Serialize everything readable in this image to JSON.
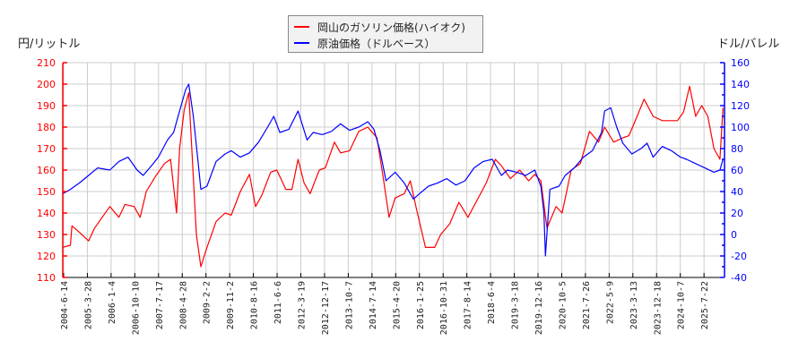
{
  "chart_data": {
    "type": "line",
    "title": "",
    "ylabel_left": "円/リットル",
    "ylabel_right": "ドル/バレル",
    "xlabel": "",
    "ylim_left": [
      110,
      210
    ],
    "ylim_right": [
      -40,
      160
    ],
    "yticks_left": [
      110,
      120,
      130,
      140,
      150,
      160,
      170,
      180,
      190,
      200,
      210
    ],
    "yticks_right": [
      -40,
      -20,
      0,
      20,
      40,
      60,
      80,
      100,
      120,
      140,
      160
    ],
    "xticks": [
      "2004-6-14",
      "2005-3-28",
      "2006-1-4",
      "2006-10-10",
      "2007-7-17",
      "2008-4-28",
      "2009-2-2",
      "2009-11-2",
      "2010-8-16",
      "2011-6-6",
      "2012-3-19",
      "2012-12-17",
      "2013-10-7",
      "2014-7-14",
      "2015-4-20",
      "2016-1-25",
      "2016-10-31",
      "2017-8-14",
      "2018-6-4",
      "2019-3-18",
      "2019-12-16",
      "2020-10-5",
      "2021-7-26",
      "2022-5-9",
      "2023-3-13",
      "2023-12-18",
      "2024-10-7",
      "2025-7-22"
    ],
    "grid": true,
    "legend_position": "top-center",
    "series": [
      {
        "name": "岡山のガソリン価格(ハイオク)",
        "axis": "left",
        "color": "#ff0000",
        "x": [
          2004.45,
          2004.7,
          2004.75,
          2005.0,
          2005.3,
          2005.5,
          2005.7,
          2006.0,
          2006.3,
          2006.5,
          2006.8,
          2007.0,
          2007.2,
          2007.5,
          2007.8,
          2008.0,
          2008.2,
          2008.3,
          2008.45,
          2008.6,
          2008.7,
          2008.85,
          2009.0,
          2009.2,
          2009.5,
          2009.8,
          2010.0,
          2010.3,
          2010.6,
          2010.8,
          2011.0,
          2011.3,
          2011.5,
          2011.8,
          2012.0,
          2012.2,
          2012.4,
          2012.6,
          2012.9,
          2013.1,
          2013.4,
          2013.6,
          2013.9,
          2014.2,
          2014.5,
          2014.8,
          2015.0,
          2015.2,
          2015.4,
          2015.7,
          2015.9,
          2016.1,
          2016.4,
          2016.7,
          2016.9,
          2017.2,
          2017.5,
          2017.8,
          2018.1,
          2018.4,
          2018.7,
          2018.9,
          2019.2,
          2019.5,
          2019.8,
          2020.0,
          2020.2,
          2020.4,
          2020.7,
          2020.9,
          2021.2,
          2021.5,
          2021.8,
          2022.1,
          2022.3,
          2022.6,
          2022.9,
          2023.1,
          2023.4,
          2023.6,
          2023.9,
          2024.2,
          2024.5,
          2024.7,
          2024.9,
          2025.1,
          2025.3,
          2025.5,
          2025.7,
          2025.9,
          2026.1,
          2026.2
        ],
        "values": [
          124,
          125,
          134,
          131,
          127,
          133,
          137,
          143,
          138,
          144,
          143,
          138,
          150,
          157,
          163,
          165,
          140,
          170,
          188,
          196,
          170,
          130,
          115,
          124,
          136,
          140,
          139,
          150,
          158,
          143,
          148,
          159,
          160,
          151,
          151,
          165,
          154,
          149,
          160,
          161,
          173,
          168,
          169,
          178,
          180,
          175,
          157,
          138,
          147,
          149,
          155,
          142,
          124,
          124,
          130,
          135,
          145,
          138,
          146,
          154,
          165,
          162,
          156,
          160,
          155,
          158,
          155,
          133,
          143,
          140,
          160,
          163,
          178,
          173,
          180,
          173,
          175,
          176,
          186,
          193,
          185,
          183,
          183,
          183,
          187,
          199,
          185,
          190,
          185,
          170,
          165,
          189
        ],
        "values_note": "approximate reading"
      },
      {
        "name": "原油価格（ドルベース）",
        "axis": "right",
        "color": "#0000ff",
        "x": [
          2004.45,
          2004.7,
          2005.0,
          2005.3,
          2005.6,
          2006.0,
          2006.3,
          2006.6,
          2006.9,
          2007.1,
          2007.4,
          2007.6,
          2007.9,
          2008.1,
          2008.3,
          2008.5,
          2008.6,
          2008.75,
          2008.9,
          2009.0,
          2009.2,
          2009.5,
          2009.8,
          2010.0,
          2010.3,
          2010.6,
          2010.9,
          2011.2,
          2011.4,
          2011.6,
          2011.9,
          2012.2,
          2012.5,
          2012.7,
          2013.0,
          2013.3,
          2013.6,
          2013.9,
          2014.2,
          2014.5,
          2014.7,
          2014.9,
          2015.1,
          2015.4,
          2015.7,
          2016.0,
          2016.2,
          2016.5,
          2016.8,
          2017.1,
          2017.4,
          2017.7,
          2018.0,
          2018.3,
          2018.6,
          2018.9,
          2019.1,
          2019.4,
          2019.7,
          2020.0,
          2020.2,
          2020.3,
          2020.35,
          2020.5,
          2020.8,
          2021.0,
          2021.3,
          2021.6,
          2021.9,
          2022.2,
          2022.3,
          2022.5,
          2022.7,
          2022.9,
          2023.2,
          2023.5,
          2023.7,
          2023.9,
          2024.2,
          2024.5,
          2024.8,
          2025.0,
          2025.3,
          2025.6,
          2025.9,
          2026.1,
          2026.2
        ],
        "values": [
          38,
          42,
          48,
          55,
          62,
          60,
          68,
          72,
          60,
          55,
          65,
          72,
          88,
          95,
          115,
          135,
          140,
          110,
          70,
          42,
          45,
          68,
          75,
          78,
          72,
          76,
          86,
          100,
          110,
          95,
          98,
          115,
          88,
          95,
          93,
          96,
          103,
          97,
          100,
          105,
          98,
          78,
          50,
          58,
          48,
          33,
          38,
          45,
          48,
          52,
          46,
          50,
          62,
          68,
          70,
          55,
          60,
          58,
          55,
          60,
          45,
          20,
          -20,
          42,
          45,
          55,
          62,
          72,
          78,
          95,
          115,
          118,
          100,
          85,
          75,
          80,
          85,
          72,
          82,
          78,
          72,
          70,
          66,
          62,
          58,
          60,
          70
        ],
        "values_note": "approximate reading"
      }
    ]
  },
  "legend": {
    "items": [
      {
        "label": "岡山のガソリン価格(ハイオク)",
        "color": "#ff0000"
      },
      {
        "label": "原油価格（ドルベース）",
        "color": "#0000ff"
      }
    ]
  },
  "axes": {
    "left_label": "円/リットル",
    "right_label": "ドル/バレル"
  }
}
